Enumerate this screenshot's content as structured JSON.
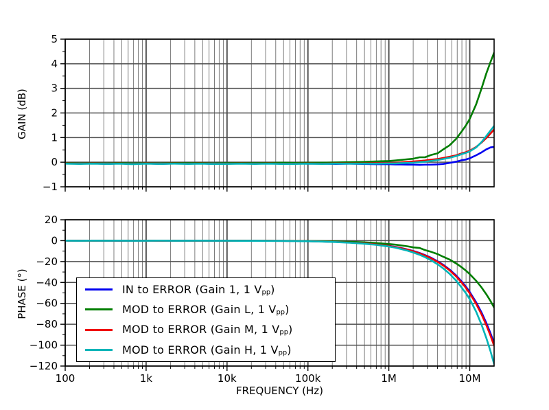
{
  "figure": {
    "background": "#ffffff",
    "frame_color": "#000000",
    "grid_major_color": "#4d4d4d",
    "grid_minor_color": "#6e6e6e"
  },
  "axes": {
    "x": {
      "label": "FREQUENCY (Hz)",
      "scale": "log",
      "min": 100,
      "max": 20000000,
      "tick_exponents": [
        2,
        3,
        4,
        5,
        6,
        7
      ],
      "tick_labels": [
        "100",
        "1k",
        "10k",
        "100k",
        "1M",
        "10M"
      ]
    },
    "gain_y": {
      "label": "GAIN (dB)",
      "min": -1,
      "max": 5,
      "ticks": [
        5,
        4,
        3,
        2,
        1,
        0,
        -1
      ],
      "minor_ticks": [
        4.5,
        3.5,
        2.5,
        1.5,
        0.5,
        -0.5
      ]
    },
    "phase_y": {
      "label": "PHASE (°)",
      "min": -120,
      "max": 20,
      "ticks": [
        20,
        0,
        -20,
        -40,
        -60,
        -80,
        -100,
        -120
      ],
      "minor_ticks": [
        10,
        -10,
        -30,
        -50,
        -70,
        -90,
        -110
      ]
    }
  },
  "legend": {
    "entries": [
      {
        "color": "#0000f0",
        "label_main": "IN to ERROR (Gain 1, 1 V",
        "label_sub": "pp",
        "label_end": ")"
      },
      {
        "color": "#007d00",
        "label_main": "MOD to ERROR (Gain L, 1 V",
        "label_sub": "pp",
        "label_end": ")"
      },
      {
        "color": "#f00000",
        "label_main": "MOD to ERROR (Gain M, 1 V",
        "label_sub": "pp",
        "label_end": ")"
      },
      {
        "color": "#00b4b8",
        "label_main": "MOD to ERROR (Gain H, 1 V",
        "label_sub": "pp",
        "label_end": ")"
      }
    ]
  },
  "chart_data": [
    {
      "type": "line",
      "title": "",
      "xlabel": "FREQUENCY (Hz)",
      "ylabel": "GAIN (dB)",
      "xscale": "log",
      "xlim": [
        100,
        20000000
      ],
      "ylim": [
        -1,
        5
      ],
      "grid": true,
      "x": [
        100,
        150,
        220,
        330,
        470,
        680,
        1000,
        1500,
        2200,
        3300,
        4700,
        6800,
        10000,
        15000,
        22000,
        33000,
        47000,
        68000,
        100000,
        150000,
        220000,
        330000,
        470000,
        680000,
        1000000,
        1200000,
        1400000,
        1700000,
        2000000,
        2400000,
        2800000,
        3300000,
        4000000,
        4700000,
        5600000,
        6800000,
        8000000,
        9000000,
        10000000,
        12000000,
        14000000,
        16000000,
        18000000,
        20000000
      ],
      "series": [
        {
          "name": "IN to ERROR (Gain 1, 1 Vpp)",
          "color": "#0000f0",
          "values": [
            -0.04,
            -0.06,
            -0.05,
            -0.07,
            -0.05,
            -0.06,
            -0.05,
            -0.07,
            -0.05,
            -0.06,
            -0.05,
            -0.07,
            -0.06,
            -0.05,
            -0.06,
            -0.05,
            -0.06,
            -0.05,
            -0.06,
            -0.06,
            -0.07,
            -0.06,
            -0.07,
            -0.08,
            -0.08,
            -0.09,
            -0.09,
            -0.1,
            -0.1,
            -0.11,
            -0.1,
            -0.1,
            -0.09,
            -0.07,
            -0.03,
            0.02,
            0.08,
            0.11,
            0.16,
            0.28,
            0.4,
            0.52,
            0.6,
            0.62
          ]
        },
        {
          "name": "MOD to ERROR (Gain L, 1 Vpp)",
          "color": "#007d00",
          "values": [
            -0.03,
            -0.05,
            -0.04,
            -0.05,
            -0.03,
            -0.05,
            -0.04,
            -0.05,
            -0.03,
            -0.04,
            -0.03,
            -0.05,
            -0.04,
            -0.03,
            -0.04,
            -0.03,
            -0.02,
            -0.03,
            -0.02,
            -0.02,
            -0.01,
            0,
            0.01,
            0.03,
            0.05,
            0.07,
            0.09,
            0.12,
            0.14,
            0.2,
            0.2,
            0.29,
            0.36,
            0.52,
            0.68,
            0.95,
            1.26,
            1.5,
            1.76,
            2.35,
            3,
            3.6,
            4.06,
            4.45
          ]
        },
        {
          "name": "MOD to ERROR (Gain M, 1 Vpp)",
          "color": "#f00000",
          "values": [
            -0.05,
            -0.06,
            -0.05,
            -0.06,
            -0.05,
            -0.07,
            -0.05,
            -0.06,
            -0.05,
            -0.06,
            -0.05,
            -0.06,
            -0.06,
            -0.05,
            -0.06,
            -0.05,
            -0.06,
            -0.06,
            -0.05,
            -0.06,
            -0.05,
            -0.05,
            -0.05,
            -0.04,
            -0.03,
            -0.02,
            -0.01,
            0.01,
            0.03,
            0.05,
            0.07,
            0.1,
            0.13,
            0.17,
            0.22,
            0.28,
            0.36,
            0.41,
            0.47,
            0.62,
            0.8,
            0.98,
            1.16,
            1.33
          ]
        },
        {
          "name": "MOD to ERROR (Gain H, 1 Vpp)",
          "color": "#00b4b8",
          "values": [
            -0.06,
            -0.07,
            -0.06,
            -0.07,
            -0.06,
            -0.08,
            -0.06,
            -0.07,
            -0.06,
            -0.07,
            -0.06,
            -0.07,
            -0.07,
            -0.06,
            -0.07,
            -0.06,
            -0.07,
            -0.07,
            -0.06,
            -0.07,
            -0.06,
            -0.06,
            -0.06,
            -0.06,
            -0.05,
            -0.05,
            -0.04,
            -0.03,
            -0.02,
            0,
            0.02,
            0.05,
            0.09,
            0.13,
            0.18,
            0.25,
            0.33,
            0.38,
            0.44,
            0.6,
            0.82,
            1.06,
            1.28,
            1.47
          ]
        }
      ]
    },
    {
      "type": "line",
      "title": "",
      "xlabel": "FREQUENCY (Hz)",
      "ylabel": "PHASE (°)",
      "xscale": "log",
      "xlim": [
        100,
        20000000
      ],
      "ylim": [
        -120,
        20
      ],
      "grid": true,
      "legend_position": "lower-left",
      "x": [
        100,
        150,
        220,
        330,
        470,
        680,
        1000,
        1500,
        2200,
        3300,
        4700,
        6800,
        10000,
        15000,
        22000,
        33000,
        47000,
        68000,
        100000,
        150000,
        220000,
        330000,
        470000,
        680000,
        1000000,
        1200000,
        1400000,
        1700000,
        2000000,
        2400000,
        2800000,
        3300000,
        4000000,
        4700000,
        5600000,
        6800000,
        8000000,
        9000000,
        10000000,
        12000000,
        14000000,
        16000000,
        18000000,
        20000000
      ],
      "series": [
        {
          "name": "IN to ERROR (Gain 1, 1 Vpp)",
          "color": "#0000f0",
          "values": [
            0.1,
            0,
            0.1,
            0,
            -0.1,
            0,
            0.1,
            0,
            -0.1,
            0,
            0,
            -0.1,
            0,
            -0.1,
            -0.1,
            -0.2,
            -0.2,
            -0.3,
            -0.5,
            -0.8,
            -1.1,
            -1.7,
            -2.4,
            -3.4,
            -4.9,
            -5.9,
            -6.9,
            -8.4,
            -9.8,
            -11.8,
            -13.8,
            -16.2,
            -19.7,
            -23.1,
            -27.5,
            -33.4,
            -39.3,
            -44.2,
            -49.1,
            -59,
            -68.8,
            -78.6,
            -88.4,
            -98
          ]
        },
        {
          "name": "MOD to ERROR (Gain L, 1 Vpp)",
          "color": "#007d00",
          "values": [
            0.1,
            0,
            0,
            0.1,
            0,
            0,
            0.1,
            0,
            0,
            -0.1,
            0,
            0,
            -0.1,
            0,
            -0.1,
            -0.1,
            -0.2,
            -0.2,
            -0.3,
            -0.5,
            -0.7,
            -1.1,
            -1.5,
            -2.2,
            -3.2,
            -3.8,
            -4.5,
            -5.4,
            -6.4,
            -7,
            -9,
            -10.6,
            -12.8,
            -15.4,
            -18,
            -21.8,
            -25.6,
            -28.8,
            -32,
            -38.4,
            -44.8,
            -51.2,
            -57.6,
            -64
          ]
        },
        {
          "name": "MOD to ERROR (Gain M, 1 Vpp)",
          "color": "#f00000",
          "values": [
            0,
            0.1,
            0,
            -0.1,
            0,
            0.1,
            0,
            -0.1,
            0,
            -0.1,
            0,
            0,
            -0.1,
            -0.1,
            -0.2,
            -0.2,
            -0.3,
            -0.3,
            -0.5,
            -0.8,
            -1.2,
            -1.8,
            -2.5,
            -3.5,
            -5.1,
            -6.1,
            -7.1,
            -8.6,
            -10.1,
            -12.1,
            -14.2,
            -16.7,
            -20.2,
            -23.7,
            -28.2,
            -34.3,
            -40.3,
            -45.4,
            -50.4,
            -60.5,
            -70.6,
            -80.7,
            -90.7,
            -100.5
          ]
        },
        {
          "name": "MOD to ERROR (Gain H, 1 Vpp)",
          "color": "#00b4b8",
          "values": [
            0,
            -0.1,
            0,
            -0.1,
            0,
            -0.1,
            -0.1,
            0,
            -0.1,
            -0.1,
            0,
            -0.1,
            -0.1,
            -0.2,
            -0.2,
            -0.3,
            -0.3,
            -0.4,
            -0.6,
            -0.9,
            -1.3,
            -2,
            -2.8,
            -3.9,
            -5.6,
            -6.7,
            -7.9,
            -9.6,
            -11.3,
            -13.5,
            -15.8,
            -18.6,
            -22.6,
            -26.5,
            -31.5,
            -38.3,
            -45.2,
            -50.5,
            -56,
            -68,
            -80.5,
            -93,
            -105.5,
            -118
          ]
        }
      ]
    }
  ]
}
